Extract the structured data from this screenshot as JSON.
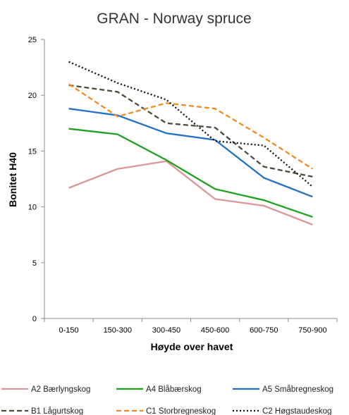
{
  "chart_data": {
    "type": "line",
    "title": "GRAN - Norway spruce",
    "xlabel": "Høyde over havet",
    "ylabel": "Bonitet H40",
    "ylim": [
      0,
      25
    ],
    "yticks": [
      "0",
      "5",
      "10",
      "15",
      "20",
      "25"
    ],
    "categories": [
      "0-150",
      "150-300",
      "300-450",
      "450-600",
      "600-750",
      "750-900"
    ],
    "grid": false,
    "legend_position": "bottom",
    "series": [
      {
        "name": "A2 Bærlyngskog",
        "color": "#d99694",
        "dash": "solid",
        "values": [
          11.7,
          13.4,
          14.1,
          10.7,
          10.1,
          8.4
        ]
      },
      {
        "name": "A4 Blåbærskog",
        "color": "#1fa01f",
        "dash": "solid",
        "values": [
          17.0,
          16.5,
          14.2,
          11.6,
          10.6,
          9.1
        ]
      },
      {
        "name": "A5 Småbregneskog",
        "color": "#1f6fc4",
        "dash": "solid",
        "values": [
          18.8,
          18.2,
          16.6,
          16.0,
          12.6,
          10.9
        ]
      },
      {
        "name": "B1 Lågurtskog",
        "color": "#4a4a3a",
        "dash": "dashed",
        "values": [
          20.9,
          20.3,
          17.5,
          17.1,
          13.6,
          12.7
        ]
      },
      {
        "name": "C1 Storbregneskog",
        "color": "#f08a20",
        "dash": "dashed",
        "values": [
          21.0,
          18.1,
          19.3,
          18.8,
          16.2,
          13.4
        ]
      },
      {
        "name": "C2 Høgstaudeskog",
        "color": "#111111",
        "dash": "dotted",
        "values": [
          23.0,
          21.1,
          19.6,
          15.9,
          15.5,
          11.8
        ]
      }
    ]
  }
}
